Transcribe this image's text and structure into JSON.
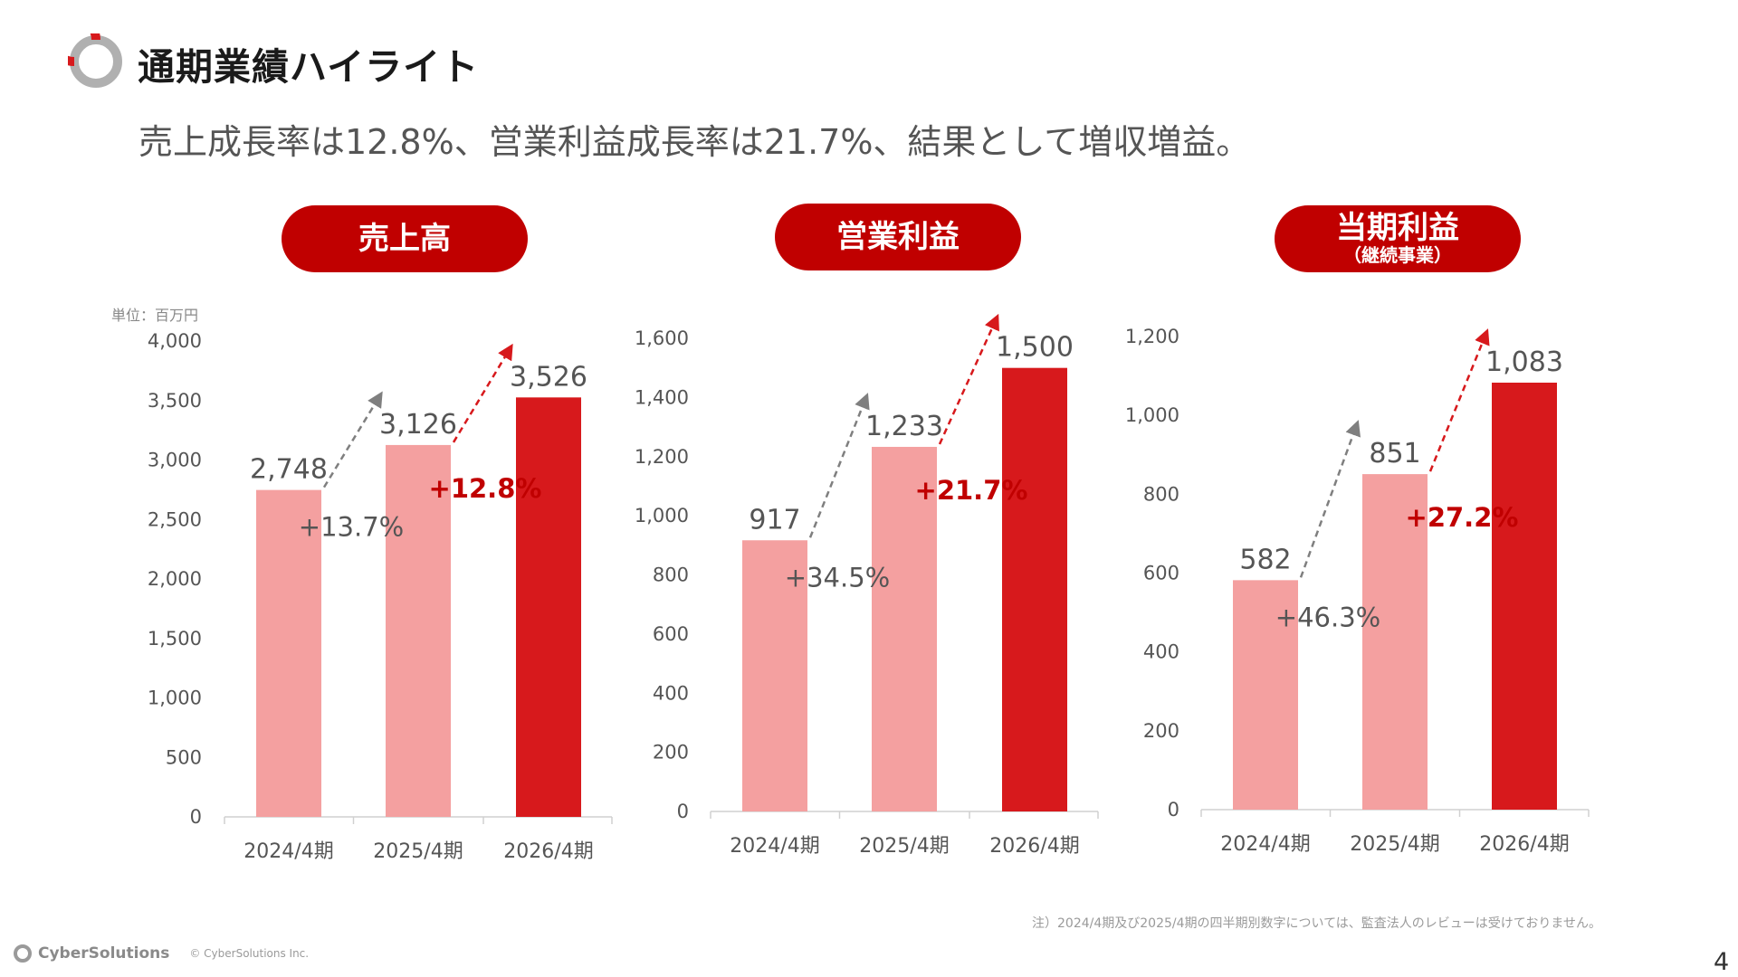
{
  "header": {
    "title": "通期業績ハイライト",
    "subtitle": "売上成長率は12.8%、営業利益成長率は21.7%、結果として増収増益。"
  },
  "colors": {
    "accent": "#c00000",
    "bar_past": "#f4a0a0",
    "bar_current": "#d7191c",
    "growth_highlight": "#c00000",
    "arrow_gray": "#7f7f7f"
  },
  "unit_label": "単位：百万円",
  "chart_data": [
    {
      "type": "bar",
      "pill": {
        "main": "売上高",
        "sub": ""
      },
      "categories": [
        "2024/4期",
        "2025/4期",
        "2026/4期"
      ],
      "values": [
        2748,
        3126,
        3526
      ],
      "value_labels": [
        "2,748",
        "3,126",
        "3,526"
      ],
      "ylim": [
        0,
        4000
      ],
      "yticks": [
        0,
        500,
        1000,
        1500,
        2000,
        2500,
        3000,
        3500,
        4000
      ],
      "ytick_labels": [
        "0",
        "500",
        "1,000",
        "1,500",
        "2,000",
        "2,500",
        "3,000",
        "3,500",
        "4,000"
      ],
      "growth": [
        "+13.7%",
        "+12.8%"
      ],
      "xlabel": "",
      "ylabel": ""
    },
    {
      "type": "bar",
      "pill": {
        "main": "営業利益",
        "sub": ""
      },
      "categories": [
        "2024/4期",
        "2025/4期",
        "2026/4期"
      ],
      "values": [
        917,
        1233,
        1500
      ],
      "value_labels": [
        "917",
        "1,233",
        "1,500"
      ],
      "ylim": [
        0,
        1600
      ],
      "yticks": [
        0,
        200,
        400,
        600,
        800,
        1000,
        1200,
        1400,
        1600
      ],
      "ytick_labels": [
        "0",
        "200",
        "400",
        "600",
        "800",
        "1,000",
        "1,200",
        "1,400",
        "1,600"
      ],
      "growth": [
        "+34.5%",
        "+21.7%"
      ],
      "xlabel": "",
      "ylabel": ""
    },
    {
      "type": "bar",
      "pill": {
        "main": "当期利益",
        "sub": "（継続事業）"
      },
      "categories": [
        "2024/4期",
        "2025/4期",
        "2026/4期"
      ],
      "values": [
        582,
        851,
        1083
      ],
      "value_labels": [
        "582",
        "851",
        "1,083"
      ],
      "ylim": [
        0,
        1200
      ],
      "yticks": [
        0,
        200,
        400,
        600,
        800,
        1000,
        1200
      ],
      "ytick_labels": [
        "0",
        "200",
        "400",
        "600",
        "800",
        "1,000",
        "1,200"
      ],
      "growth": [
        "+46.3%",
        "+27.2%"
      ],
      "xlabel": "",
      "ylabel": ""
    }
  ],
  "footer": {
    "note": "注）2024/4期及び2025/4期の四半期別数字については、監査法人のレビューは受けておりません。",
    "brand": "CyberSolutions",
    "copyright": "© CyberSolutions Inc.",
    "page_number": "4"
  }
}
